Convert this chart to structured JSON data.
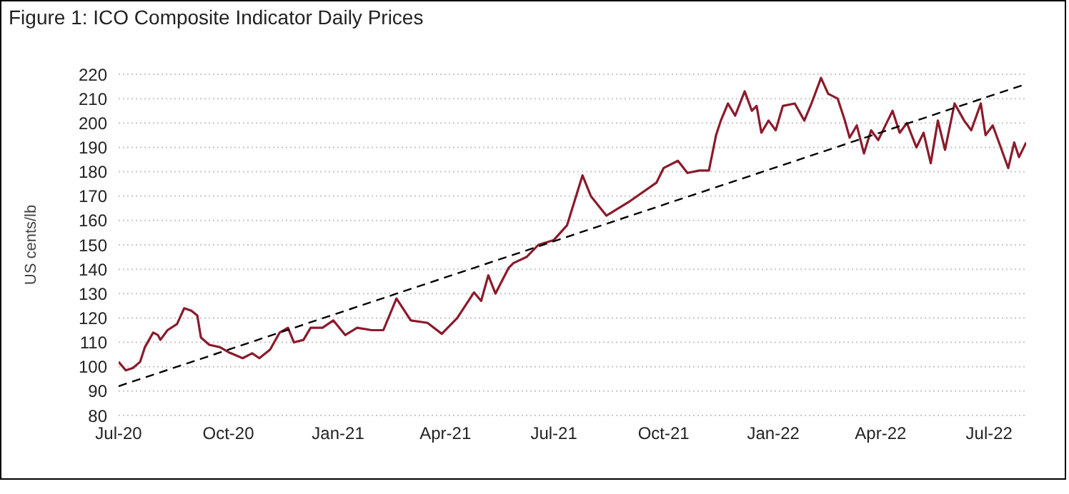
{
  "chart_data": {
    "type": "line",
    "title": "Figure 1: ICO Composite Indicator Daily Prices",
    "ylabel": "US cents/lb",
    "xlim": [
      "2020-07-01",
      "2022-08-01"
    ],
    "xticks": [
      {
        "value": "2020-07-01",
        "label": "Jul-20"
      },
      {
        "value": "2020-10-01",
        "label": "Oct-20"
      },
      {
        "value": "2021-01-01",
        "label": "Jan-21"
      },
      {
        "value": "2021-04-01",
        "label": "Apr-21"
      },
      {
        "value": "2021-07-01",
        "label": "Jul-21"
      },
      {
        "value": "2021-10-01",
        "label": "Oct-21"
      },
      {
        "value": "2022-01-01",
        "label": "Jan-22"
      },
      {
        "value": "2022-04-01",
        "label": "Apr-22"
      },
      {
        "value": "2022-07-01",
        "label": "Jul-22"
      }
    ],
    "ylim": [
      80,
      220
    ],
    "yticks": [
      80,
      90,
      100,
      110,
      120,
      130,
      140,
      150,
      160,
      170,
      180,
      190,
      200,
      210,
      220
    ],
    "grid": "y",
    "series": [
      {
        "color": "#8b1a2b",
        "x": [
          "2020-07-01",
          "2020-07-07",
          "2020-07-13",
          "2020-07-19",
          "2020-07-23",
          "2020-07-30",
          "2020-08-03",
          "2020-08-05",
          "2020-08-11",
          "2020-08-19",
          "2020-08-25",
          "2020-08-31",
          "2020-09-05",
          "2020-09-08",
          "2020-09-15",
          "2020-09-24",
          "2020-10-01",
          "2020-10-13",
          "2020-10-21",
          "2020-10-27",
          "2020-11-05",
          "2020-11-13",
          "2020-11-20",
          "2020-11-25",
          "2020-12-03",
          "2020-12-09",
          "2020-12-19",
          "2020-12-28",
          "2021-01-07",
          "2021-01-17",
          "2021-01-29",
          "2021-02-08",
          "2021-02-19",
          "2021-03-03",
          "2021-03-17",
          "2021-03-29",
          "2021-04-11",
          "2021-04-25",
          "2021-05-01",
          "2021-05-07",
          "2021-05-13",
          "2021-05-24",
          "2021-05-28",
          "2021-06-08",
          "2021-06-18",
          "2021-07-01",
          "2021-07-12",
          "2021-07-25",
          "2021-08-01",
          "2021-08-14",
          "2021-09-03",
          "2021-09-25",
          "2021-10-01",
          "2021-10-13",
          "2021-10-21",
          "2021-10-31",
          "2021-11-08",
          "2021-11-14",
          "2021-11-18",
          "2021-11-24",
          "2021-11-30",
          "2021-12-08",
          "2021-12-14",
          "2021-12-18",
          "2021-12-22",
          "2021-12-28",
          "2022-01-03",
          "2022-01-09",
          "2022-01-19",
          "2022-01-27",
          "2022-02-02",
          "2022-02-10",
          "2022-02-16",
          "2022-02-24",
          "2022-03-02",
          "2022-03-06",
          "2022-03-12",
          "2022-03-18",
          "2022-03-24",
          "2022-03-30",
          "2022-04-07",
          "2022-04-11",
          "2022-04-17",
          "2022-04-23",
          "2022-05-01",
          "2022-05-07",
          "2022-05-13",
          "2022-05-19",
          "2022-05-25",
          "2022-06-02",
          "2022-06-10",
          "2022-06-16",
          "2022-06-24",
          "2022-06-28",
          "2022-07-04",
          "2022-07-10",
          "2022-07-17",
          "2022-07-22",
          "2022-07-26",
          "2022-08-01"
        ],
        "values": [
          102,
          98.5,
          99.5,
          102,
          108,
          114,
          113,
          111,
          115,
          117.5,
          124,
          123,
          121,
          112,
          109,
          108,
          106,
          103.5,
          105.5,
          103.5,
          107,
          114,
          116,
          110,
          111,
          116,
          116,
          119,
          113,
          116,
          115,
          115,
          128,
          119,
          118,
          113.5,
          120,
          130.5,
          127,
          137.5,
          130,
          140.5,
          142.5,
          145,
          150,
          152,
          158,
          178.5,
          170,
          162,
          168,
          175.5,
          181.5,
          184.5,
          179.5,
          180.5,
          180.5,
          195,
          201,
          208,
          203,
          213,
          205,
          207,
          196,
          201,
          197,
          207,
          208,
          201,
          208,
          218.5,
          212,
          210,
          201,
          194,
          199,
          187.5,
          197,
          193,
          201,
          205,
          196,
          200,
          190,
          196,
          183.5,
          201,
          189,
          208,
          201,
          197,
          208,
          195,
          199,
          191,
          181.5,
          192,
          186,
          192
        ]
      },
      {
        "type": "line",
        "color": "#000000",
        "line_style": "dashed",
        "x": [
          "2020-07-01",
          "2022-08-01"
        ],
        "values": [
          92,
          216
        ]
      }
    ]
  }
}
